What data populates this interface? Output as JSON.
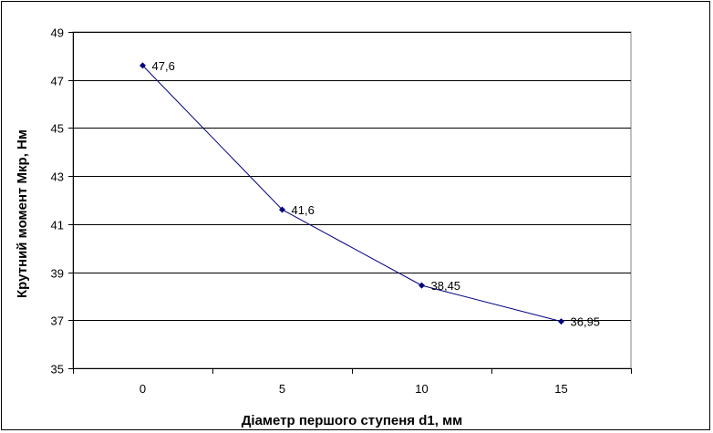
{
  "chart_data": {
    "type": "line",
    "title": "",
    "xlabel": "Діаметр першого ступеня d1, мм",
    "ylabel": "Крутний момент Мкр, Нм",
    "categories": [
      "0",
      "5",
      "10",
      "15"
    ],
    "series": [
      {
        "values": [
          47.6,
          41.6,
          38.45,
          36.95
        ],
        "labels": [
          "47,6",
          "41,6",
          "38,45",
          "36,95"
        ],
        "color": "#000080"
      }
    ],
    "ylim": [
      35,
      49
    ],
    "yticks": [
      35,
      37,
      39,
      41,
      43,
      45,
      47,
      49
    ],
    "grid": true,
    "legend": "none"
  }
}
